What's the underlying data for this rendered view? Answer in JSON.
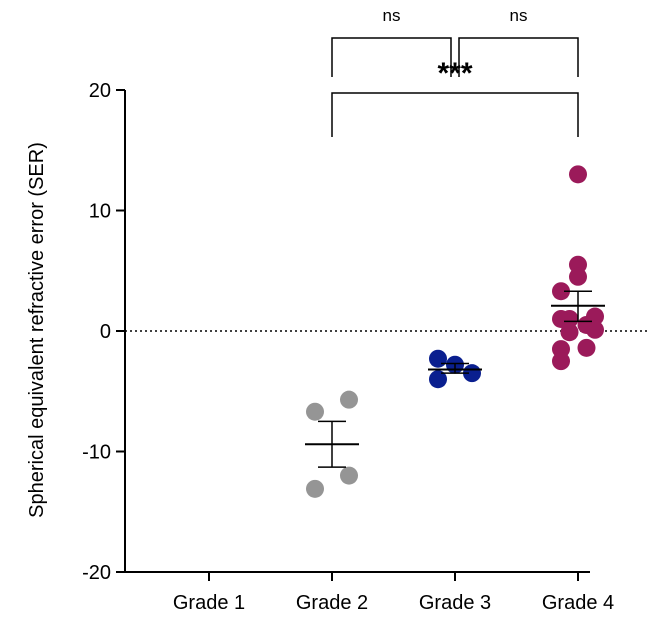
{
  "chart_data": {
    "type": "scatter",
    "ylabel": "Spherical equivalent refractive error (SER)",
    "xlabel": "",
    "ylim": [
      -20,
      20
    ],
    "yticks": [
      20,
      10,
      0,
      -10,
      -20
    ],
    "categories": [
      "Grade 1",
      "Grade 2",
      "Grade 3",
      "Grade 4"
    ],
    "reference_line": {
      "y": 0,
      "style": "dotted"
    },
    "colors": {
      "Grade 2": "#959595",
      "Grade 3": "#0a1f8f",
      "Grade 4": "#9b1a5a"
    },
    "series": [
      {
        "category": "Grade 1",
        "values": []
      },
      {
        "category": "Grade 2",
        "values": [
          -6.7,
          -5.7,
          -13.1,
          -12.0
        ],
        "mean": -9.4,
        "sem_low": -11.3,
        "sem_high": -7.5
      },
      {
        "category": "Grade 3",
        "values": [
          -2.3,
          -2.8,
          -4.0,
          -3.5
        ],
        "mean": -3.2,
        "sem_low": -3.5,
        "sem_high": -2.7
      },
      {
        "category": "Grade 4",
        "values": [
          13.0,
          5.5,
          4.5,
          3.3,
          1.0,
          1.2,
          1.0,
          0.5,
          -0.1,
          0.1,
          -1.5,
          -1.4,
          -2.5
        ],
        "mean": 2.1,
        "sem_low": 0.8,
        "sem_high": 3.3
      }
    ],
    "comparisons": [
      {
        "from": "Grade 2",
        "to": "Grade 3",
        "label": "ns"
      },
      {
        "from": "Grade 3",
        "to": "Grade 4",
        "label": "ns"
      },
      {
        "from": "Grade 2",
        "to": "Grade 4",
        "label": "***"
      }
    ]
  }
}
